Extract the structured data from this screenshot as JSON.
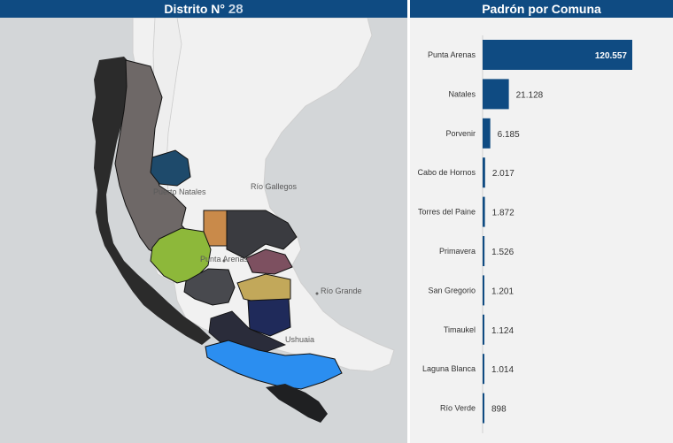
{
  "left_header": {
    "title": "Distrito N°",
    "number": "28"
  },
  "right_header": {
    "title": "Padrón por Comuna"
  },
  "map": {
    "labels": [
      "Puerto Natales",
      "Río Gallegos",
      "Punta Arenas",
      "Río Grande",
      "Ushuaia"
    ]
  },
  "chart_data": {
    "type": "bar",
    "orientation": "horizontal",
    "title": "Padrón por Comuna",
    "categories": [
      "Punta Arenas",
      "Natales",
      "Porvenir",
      "Cabo de Hornos",
      "Torres del Paine",
      "Primavera",
      "San Gregorio",
      "Timaukel",
      "Laguna Blanca",
      "Río Verde"
    ],
    "values": [
      120557,
      21128,
      6185,
      2017,
      1872,
      1526,
      1201,
      1124,
      1014,
      898
    ],
    "value_labels": [
      "120.557",
      "21.128",
      "6.185",
      "2.017",
      "1.872",
      "1.526",
      "1.201",
      "1.124",
      "1.014",
      "898"
    ],
    "bar_color": "#0f4b82"
  }
}
